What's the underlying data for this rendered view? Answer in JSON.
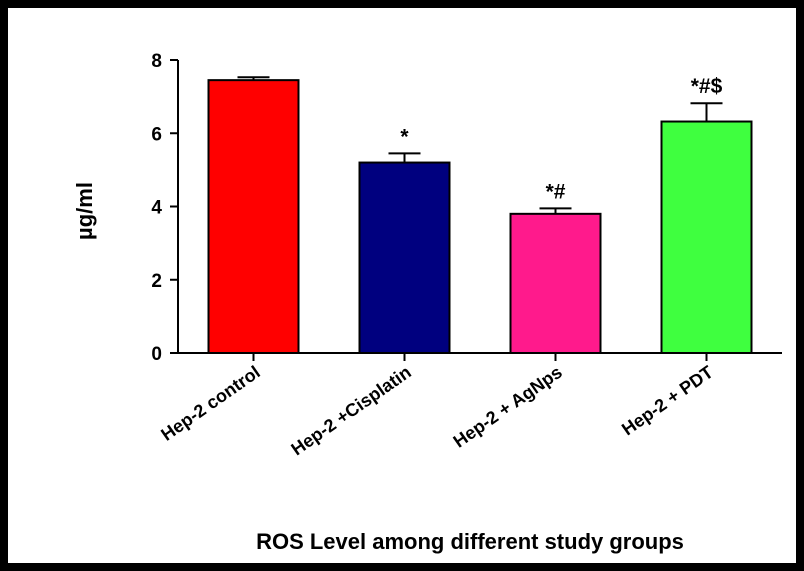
{
  "chart_data": {
    "type": "bar",
    "title": "",
    "xlabel": "ROS Level among different study groups",
    "ylabel": "µg/ml",
    "ylim": [
      0,
      8
    ],
    "yticks": [
      0,
      2,
      4,
      6,
      8
    ],
    "categories": [
      "Hep-2 control",
      "Hep-2 +Cisplatin",
      "Hep-2 + AgNps",
      "Hep-2 + PDT"
    ],
    "values": [
      7.45,
      5.2,
      3.8,
      6.32
    ],
    "errors": [
      0.08,
      0.25,
      0.15,
      0.5
    ],
    "annotations": [
      "",
      "*",
      "*#",
      "*#$"
    ],
    "colors": [
      "#ff0000",
      "#00007f",
      "#ff1a8c",
      "#3fff3f"
    ],
    "grid": false,
    "legend": "none"
  }
}
